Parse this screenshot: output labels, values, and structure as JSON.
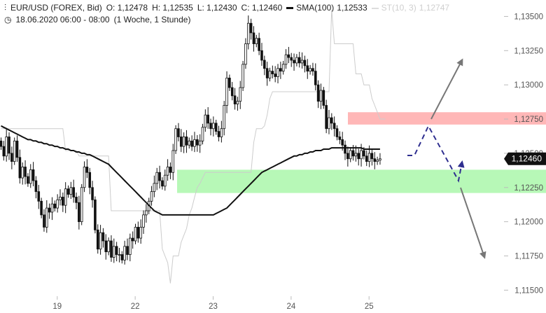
{
  "header": {
    "icon": "candlestick-icon",
    "symbol": "EUR/USD (FOREX, Bid)",
    "open": "O: 1,12478",
    "high": "H: 1,12535",
    "low": "L: 1,12430",
    "close": "C: 1,12460",
    "sma_label": "SMA(100)",
    "sma_value": "1,12533",
    "st_label": "ST(10, 3)",
    "st_value": "1,12747",
    "clock_icon": "clock-icon",
    "period": "18.06.2020 06:00 - 08:00",
    "range": "(1 Woche, 1 Stunde)"
  },
  "chart_data": {
    "type": "candlestick",
    "y_ticks": [
      {
        "label": "1,13500",
        "value": 1.135
      },
      {
        "label": "1,13250",
        "value": 1.1325
      },
      {
        "label": "1,13000",
        "value": 1.13
      },
      {
        "label": "1,12750",
        "value": 1.1275
      },
      {
        "label": "1,12500",
        "value": 1.125
      },
      {
        "label": "1,12250",
        "value": 1.1225
      },
      {
        "label": "1,12000",
        "value": 1.12
      },
      {
        "label": "1,11750",
        "value": 1.1175
      },
      {
        "label": "1,11500",
        "value": 1.115
      }
    ],
    "x_ticks": [
      {
        "label": "19",
        "index": 17
      },
      {
        "label": "22",
        "index": 46
      },
      {
        "label": "23",
        "index": 75
      },
      {
        "label": "24",
        "index": 104
      },
      {
        "label": "25",
        "index": 133
      }
    ],
    "ylim": [
      1.1142,
      1.1362
    ],
    "current_price": {
      "label": "1,12460",
      "value": 1.1246
    },
    "zones": [
      {
        "name": "resistance",
        "from": 1.1271,
        "to": 1.128,
        "color": "#ff9f9f"
      },
      {
        "name": "support",
        "from": 1.1221,
        "to": 1.1238,
        "color": "#9ff59f"
      }
    ],
    "colors": {
      "bull": "#ffffff",
      "bear": "#111111",
      "sma": "#111111",
      "st": "#cccccc",
      "arrow_dashed": "#2e2e8f",
      "arrow_solid": "#777777",
      "price_tag": "#111111"
    },
    "candles_close": [
      1.1255,
      1.1248,
      1.1262,
      1.125,
      1.1244,
      1.1259,
      1.1247,
      1.1232,
      1.124,
      1.1233,
      1.1228,
      1.1238,
      1.123,
      1.1222,
      1.1215,
      1.1205,
      1.1196,
      1.121,
      1.1207,
      1.1213,
      1.121,
      1.1216,
      1.1218,
      1.1212,
      1.1224,
      1.122,
      1.1225,
      1.1218,
      1.1214,
      1.12,
      1.1225,
      1.124,
      1.1236,
      1.1225,
      1.1216,
      1.1194,
      1.118,
      1.1192,
      1.1186,
      1.1178,
      1.1186,
      1.1174,
      1.1182,
      1.1176,
      1.1176,
      1.1172,
      1.1182,
      1.1176,
      1.1188,
      1.1186,
      1.1196,
      1.1188,
      1.1196,
      1.1205,
      1.1208,
      1.1215,
      1.1222,
      1.1228,
      1.1236,
      1.123,
      1.1226,
      1.1234,
      1.124,
      1.1236,
      1.1252,
      1.1268,
      1.1262,
      1.1255,
      1.1262,
      1.1256,
      1.1259,
      1.1255,
      1.126,
      1.1256,
      1.1259,
      1.1269,
      1.1278,
      1.1272,
      1.1268,
      1.1272,
      1.1266,
      1.1262,
      1.1268,
      1.1285,
      1.1305,
      1.1298,
      1.1292,
      1.1286,
      1.1288,
      1.1298,
      1.1315,
      1.133,
      1.1345,
      1.1338,
      1.133,
      1.1334,
      1.1325,
      1.1318,
      1.1312,
      1.1305,
      1.131,
      1.1308,
      1.1306,
      1.1312,
      1.131,
      1.1315,
      1.1322,
      1.132,
      1.1318,
      1.1316,
      1.132,
      1.1316,
      1.1318,
      1.1314,
      1.131,
      1.1312,
      1.131,
      1.13,
      1.1288,
      1.1296,
      1.1285,
      1.1268,
      1.1276,
      1.1272,
      1.1268,
      1.1262,
      1.126,
      1.1256,
      1.125,
      1.1246,
      1.1252,
      1.1248,
      1.125,
      1.1246,
      1.1252,
      1.1248,
      1.1244,
      1.125,
      1.1246,
      1.1244,
      1.1245,
      1.1246
    ],
    "sma": [
      1.127,
      1.1269,
      1.1268,
      1.1267,
      1.1266,
      1.1265,
      1.1264,
      1.1263,
      1.1262,
      1.1261,
      1.126,
      1.126,
      1.1259,
      1.1259,
      1.1258,
      1.1258,
      1.1257,
      1.1257,
      1.1256,
      1.1256,
      1.1255,
      1.1255,
      1.1254,
      1.1254,
      1.1253,
      1.1253,
      1.1252,
      1.1252,
      1.1251,
      1.1251,
      1.125,
      1.125,
      1.1249,
      1.1249,
      1.1248,
      1.1247,
      1.1246,
      1.1245,
      1.1244,
      1.1243,
      1.1242,
      1.124,
      1.1238,
      1.1236,
      1.1234,
      1.1232,
      1.123,
      1.1228,
      1.1226,
      1.1224,
      1.1222,
      1.122,
      1.1218,
      1.1216,
      1.1214,
      1.1212,
      1.121,
      1.1208,
      1.1207,
      1.1206,
      1.1205,
      1.1205,
      1.1205,
      1.1205,
      1.1205,
      1.1205,
      1.1205,
      1.1205,
      1.1205,
      1.1205,
      1.1205,
      1.1205,
      1.1205,
      1.1205,
      1.1205,
      1.1205,
      1.1205,
      1.1205,
      1.1205,
      1.1205,
      1.1206,
      1.1207,
      1.1208,
      1.1209,
      1.121,
      1.1212,
      1.1214,
      1.1216,
      1.1218,
      1.122,
      1.1222,
      1.1224,
      1.1226,
      1.1228,
      1.123,
      1.1232,
      1.1234,
      1.1236,
      1.1237,
      1.1238,
      1.1239,
      1.124,
      1.1241,
      1.1242,
      1.1243,
      1.1244,
      1.1245,
      1.1246,
      1.1247,
      1.1248,
      1.1248,
      1.1249,
      1.1249,
      1.125,
      1.125,
      1.1251,
      1.1251,
      1.1252,
      1.1252,
      1.1252,
      1.1253,
      1.1253,
      1.1253,
      1.1254,
      1.1254,
      1.1254,
      1.1254,
      1.1254,
      1.1254,
      1.1254,
      1.1254,
      1.1254,
      1.1254,
      1.1254,
      1.1254,
      1.1253,
      1.1253,
      1.1253,
      1.1253,
      1.1253,
      1.1253,
      1.1253
    ],
    "st": [
      1.1268,
      1.1268,
      1.1268,
      1.1268,
      1.1268,
      1.1268,
      1.1268,
      1.1268,
      1.1268,
      1.1268,
      1.1268,
      1.1268,
      1.1268,
      1.1268,
      1.1268,
      1.1268,
      1.1268,
      1.1268,
      1.1268,
      1.1268,
      1.1268,
      1.1268,
      1.1268,
      1.1268,
      1.1252,
      1.1252,
      1.1252,
      1.1252,
      1.1252,
      1.1248,
      1.1248,
      1.1248,
      1.1248,
      1.1248,
      1.1248,
      1.1248,
      1.1248,
      1.1248,
      1.1248,
      1.1248,
      1.1248,
      1.1208,
      1.1208,
      1.1208,
      1.1208,
      1.1208,
      1.1208,
      1.1208,
      1.1208,
      1.1208,
      1.1208,
      1.1208,
      1.1208,
      1.1208,
      1.1208,
      1.1208,
      1.1208,
      1.1208,
      1.1208,
      1.1208,
      1.118,
      1.1175,
      1.117,
      1.1155,
      1.1175,
      1.1175,
      1.1175,
      1.1185,
      1.119,
      1.1195,
      1.1205,
      1.121,
      1.1218,
      1.1225,
      1.1228,
      1.1232,
      1.1236,
      1.1236,
      1.1236,
      1.1236,
      1.1236,
      1.1236,
      1.1236,
      1.1236,
      1.1236,
      1.1236,
      1.1236,
      1.1236,
      1.1236,
      1.1236,
      1.1236,
      1.1236,
      1.1236,
      1.1236,
      1.1258,
      1.1268,
      1.1268,
      1.1268,
      1.127,
      1.1278,
      1.129,
      1.1295,
      1.1295,
      1.1295,
      1.1295,
      1.1295,
      1.1295,
      1.1295,
      1.1295,
      1.1295,
      1.1295,
      1.1295,
      1.1295,
      1.1295,
      1.1295,
      1.1295,
      1.1295,
      1.1295,
      1.1295,
      1.1295,
      1.1295,
      1.1295,
      1.1295,
      1.1355,
      1.133,
      1.133,
      1.133,
      1.133,
      1.133,
      1.133,
      1.133,
      1.133,
      1.1308,
      1.1308,
      1.1308,
      1.13,
      1.13,
      1.13,
      1.129,
      1.1285,
      1.128,
      1.1275,
      1.1275,
      1.1275
    ]
  }
}
